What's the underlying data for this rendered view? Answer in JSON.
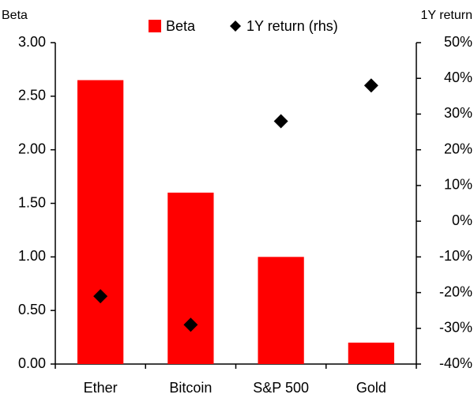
{
  "chart_data": {
    "type": "bar",
    "y_label": "Beta",
    "y2_label": "1Y return",
    "categories": [
      "Ether",
      "Bitcoin",
      "S&P 500",
      "Gold"
    ],
    "series": [
      {
        "name": "Beta",
        "color": "#ff0000",
        "type": "bar",
        "values": [
          2.65,
          1.6,
          1.0,
          0.2
        ]
      },
      {
        "name": "1Y return (rhs)",
        "color": "#000000",
        "type": "scatter",
        "marker": "diamond",
        "axis": "y2",
        "values": [
          -21,
          -29,
          28,
          38
        ]
      }
    ],
    "ylim": [
      0,
      3
    ],
    "yticks": [
      {
        "value": 0,
        "label": "0.00"
      },
      {
        "value": 0.5,
        "label": "0.50"
      },
      {
        "value": 1,
        "label": "1.00"
      },
      {
        "value": 1.5,
        "label": "1.50"
      },
      {
        "value": 2,
        "label": "2.00"
      },
      {
        "value": 2.5,
        "label": "2.50"
      },
      {
        "value": 3,
        "label": "3.00"
      }
    ],
    "y2lim": [
      -40,
      50
    ],
    "y2ticks": [
      {
        "value": -40,
        "label": "-40%"
      },
      {
        "value": -30,
        "label": "-30%"
      },
      {
        "value": -20,
        "label": "-20%"
      },
      {
        "value": -10,
        "label": "-10%"
      },
      {
        "value": 0,
        "label": "0%"
      },
      {
        "value": 10,
        "label": "10%"
      },
      {
        "value": 20,
        "label": "20%"
      },
      {
        "value": 30,
        "label": "30%"
      },
      {
        "value": 40,
        "label": "40%"
      },
      {
        "value": 50,
        "label": "50%"
      }
    ],
    "legend": "top",
    "grid": false
  }
}
